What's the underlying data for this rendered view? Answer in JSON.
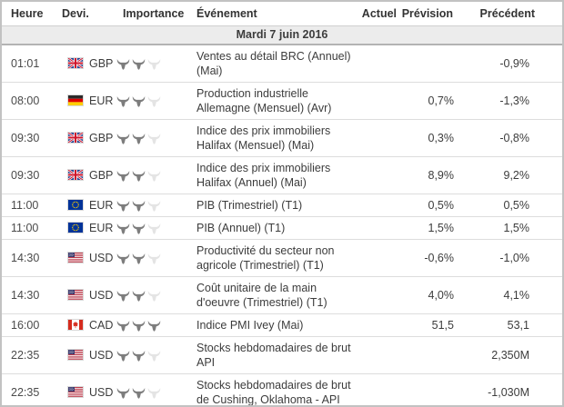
{
  "columns": {
    "time": "Heure",
    "currency": "Devi.",
    "importance": "Importance",
    "event": "Événement",
    "actual": "Actuel",
    "forecast": "Prévision",
    "previous": "Précédent"
  },
  "date_label": "Mardi 7 juin 2016",
  "importance_max": 3,
  "colors": {
    "header_text": "#333333",
    "row_text": "#3c3c3c",
    "date_bg": "#ececec",
    "border_outer": "#c2c2c2",
    "row_border": "#dddddd",
    "date_border": "#b3b3b3",
    "bull_filled": "#7d7d7d",
    "bull_empty": "#e4e4e4"
  },
  "icons": {
    "importance": "bull-icon",
    "flags": [
      "gb-flag-icon",
      "de-flag-icon",
      "eu-flag-icon",
      "us-flag-icon",
      "ca-flag-icon"
    ]
  },
  "rows": [
    {
      "time": "01:01",
      "currency": "GBP",
      "flag": "gb",
      "importance": 2,
      "event": "Ventes au détail BRC (Annuel)\n(Mai)",
      "actual": "",
      "forecast": "",
      "previous": "-0,9%"
    },
    {
      "time": "08:00",
      "currency": "EUR",
      "flag": "de",
      "importance": 2,
      "event": "Production industrielle\nAllemagne (Mensuel) (Avr)",
      "actual": "",
      "forecast": "0,7%",
      "previous": "-1,3%"
    },
    {
      "time": "09:30",
      "currency": "GBP",
      "flag": "gb",
      "importance": 2,
      "event": "Indice des prix immobiliers\nHalifax (Mensuel) (Mai)",
      "actual": "",
      "forecast": "0,3%",
      "previous": "-0,8%"
    },
    {
      "time": "09:30",
      "currency": "GBP",
      "flag": "gb",
      "importance": 2,
      "event": "Indice des prix immobiliers\nHalifax (Annuel) (Mai)",
      "actual": "",
      "forecast": "8,9%",
      "previous": "9,2%"
    },
    {
      "time": "11:00",
      "currency": "EUR",
      "flag": "eu",
      "importance": 2,
      "event": "PIB (Trimestriel) (T1)",
      "actual": "",
      "forecast": "0,5%",
      "previous": "0,5%"
    },
    {
      "time": "11:00",
      "currency": "EUR",
      "flag": "eu",
      "importance": 2,
      "event": "PIB (Annuel) (T1)",
      "actual": "",
      "forecast": "1,5%",
      "previous": "1,5%"
    },
    {
      "time": "14:30",
      "currency": "USD",
      "flag": "us",
      "importance": 2,
      "event": "Productivité du secteur non\nagricole (Trimestriel) (T1)",
      "actual": "",
      "forecast": "-0,6%",
      "previous": "-1,0%"
    },
    {
      "time": "14:30",
      "currency": "USD",
      "flag": "us",
      "importance": 2,
      "event": "Coût unitaire de la main\nd'oeuvre (Trimestriel) (T1)",
      "actual": "",
      "forecast": "4,0%",
      "previous": "4,1%"
    },
    {
      "time": "16:00",
      "currency": "CAD",
      "flag": "ca",
      "importance": 3,
      "event": "Indice PMI Ivey (Mai)",
      "actual": "",
      "forecast": "51,5",
      "previous": "53,1"
    },
    {
      "time": "22:35",
      "currency": "USD",
      "flag": "us",
      "importance": 2,
      "event": "Stocks hebdomadaires de brut\nAPI",
      "actual": "",
      "forecast": "",
      "previous": "2,350M"
    },
    {
      "time": "22:35",
      "currency": "USD",
      "flag": "us",
      "importance": 2,
      "event": "Stocks hebdomadaires de brut\nde Cushing, Oklahoma - API",
      "actual": "",
      "forecast": "",
      "previous": "-1,030M"
    }
  ]
}
